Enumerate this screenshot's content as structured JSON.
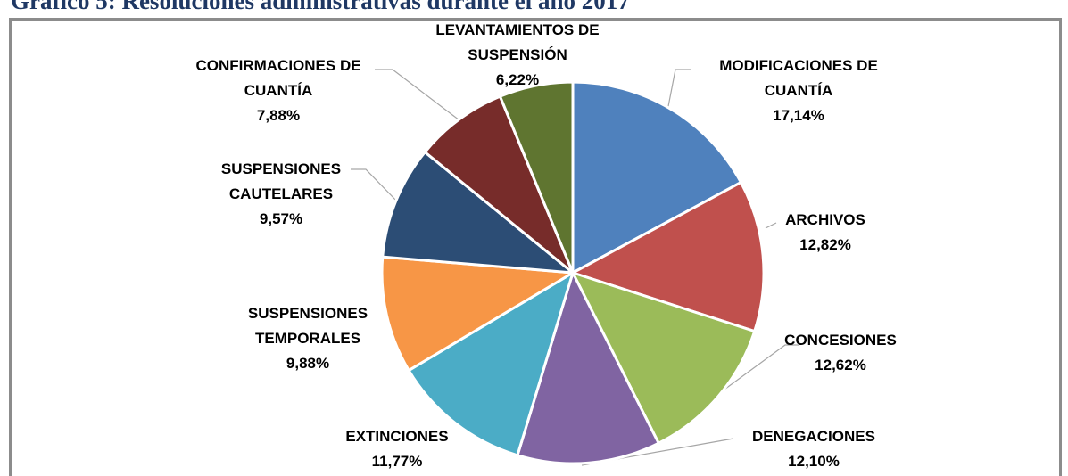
{
  "chart_data": {
    "type": "pie",
    "title": "Gráfico 5: Resoluciones administrativas durante el año 2017",
    "categories": [
      "MODIFICACIONES DE CUANTÍA",
      "ARCHIVOS",
      "CONCESIONES",
      "DENEGACIONES",
      "EXTINCIONES",
      "SUSPENSIONES TEMPORALES",
      "SUSPENSIONES CAUTELARES",
      "CONFIRMACIONES DE CUANTÍA",
      "LEVANTAMIENTOS DE SUSPENSIÓN"
    ],
    "values": [
      17.14,
      12.82,
      12.62,
      12.1,
      11.77,
      9.88,
      9.57,
      7.88,
      6.22
    ],
    "value_labels": [
      "17,14%",
      "12,82%",
      "12,62%",
      "12,10%",
      "11,77%",
      "9,88%",
      "9,57%",
      "7,88%",
      "6,22%"
    ],
    "colors": [
      "#4f81bd",
      "#c0504d",
      "#9bbb59",
      "#8064a2",
      "#4bacc6",
      "#f79646",
      "#2c4d75",
      "#772c2a",
      "#5f7530"
    ]
  }
}
